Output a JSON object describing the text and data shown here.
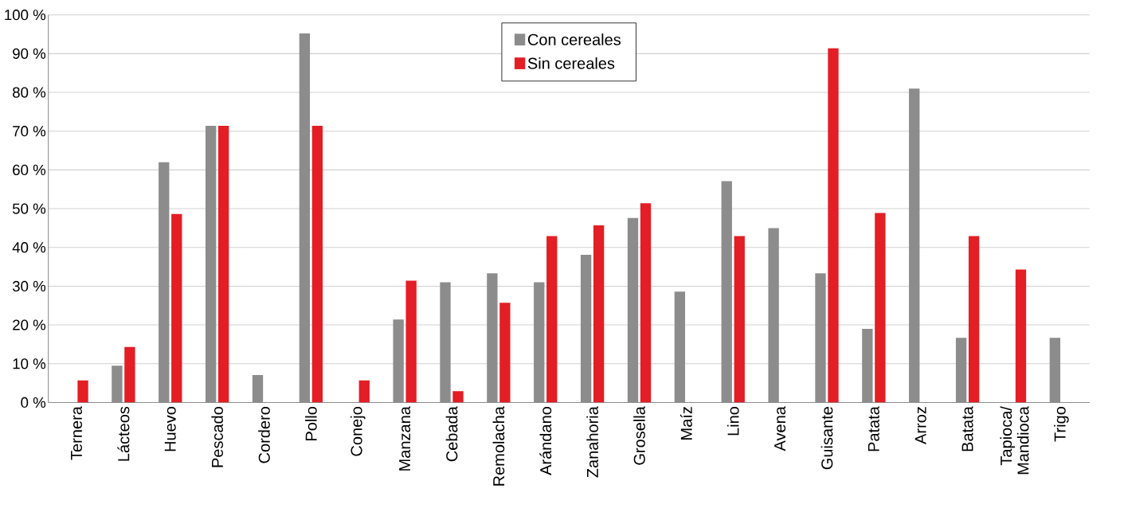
{
  "chart_data": {
    "type": "bar",
    "categories": [
      "Ternera",
      "Lácteos",
      "Huevo",
      "Pescado",
      "Cordero",
      "Pollo",
      "Conejo",
      "Manzana",
      "Cebada",
      "Remolacha",
      "Arándano",
      "Zanahoria",
      "Grosella",
      "Maíz",
      "Lino",
      "Avena",
      "Guisante",
      "Patata",
      "Arroz",
      "Batata",
      "Tapioca/ Mandioca",
      "Trigo"
    ],
    "series": [
      {
        "name": "Con cereales",
        "color": "#8c8c8c",
        "values": [
          null,
          9.5,
          62,
          71.4,
          7.1,
          95.2,
          null,
          21.4,
          31,
          33.3,
          31,
          38.1,
          47.6,
          28.6,
          57.1,
          45,
          33.3,
          19,
          81,
          16.7,
          null,
          16.7
        ]
      },
      {
        "name": "Sin cereales",
        "color": "#e31e24",
        "values": [
          5.7,
          14.3,
          48.6,
          71.4,
          null,
          71.4,
          5.7,
          31.4,
          2.9,
          25.7,
          42.9,
          45.7,
          51.4,
          null,
          42.9,
          null,
          91.4,
          48.9,
          null,
          42.9,
          34.3,
          null
        ]
      }
    ],
    "ylim": [
      0,
      100
    ],
    "yticks": [
      {
        "value": 0,
        "label": "0 %"
      },
      {
        "value": 10,
        "label": "10 %"
      },
      {
        "value": 20,
        "label": "20 %"
      },
      {
        "value": 30,
        "label": "30 %"
      },
      {
        "value": 40,
        "label": "40 %"
      },
      {
        "value": 50,
        "label": "50 %"
      },
      {
        "value": 60,
        "label": "60 %"
      },
      {
        "value": 70,
        "label": "70 %"
      },
      {
        "value": 80,
        "label": "80 %"
      },
      {
        "value": 90,
        "label": "90 %"
      },
      {
        "value": 100,
        "label": "100 %"
      }
    ],
    "grid": "y",
    "legend": "top"
  }
}
